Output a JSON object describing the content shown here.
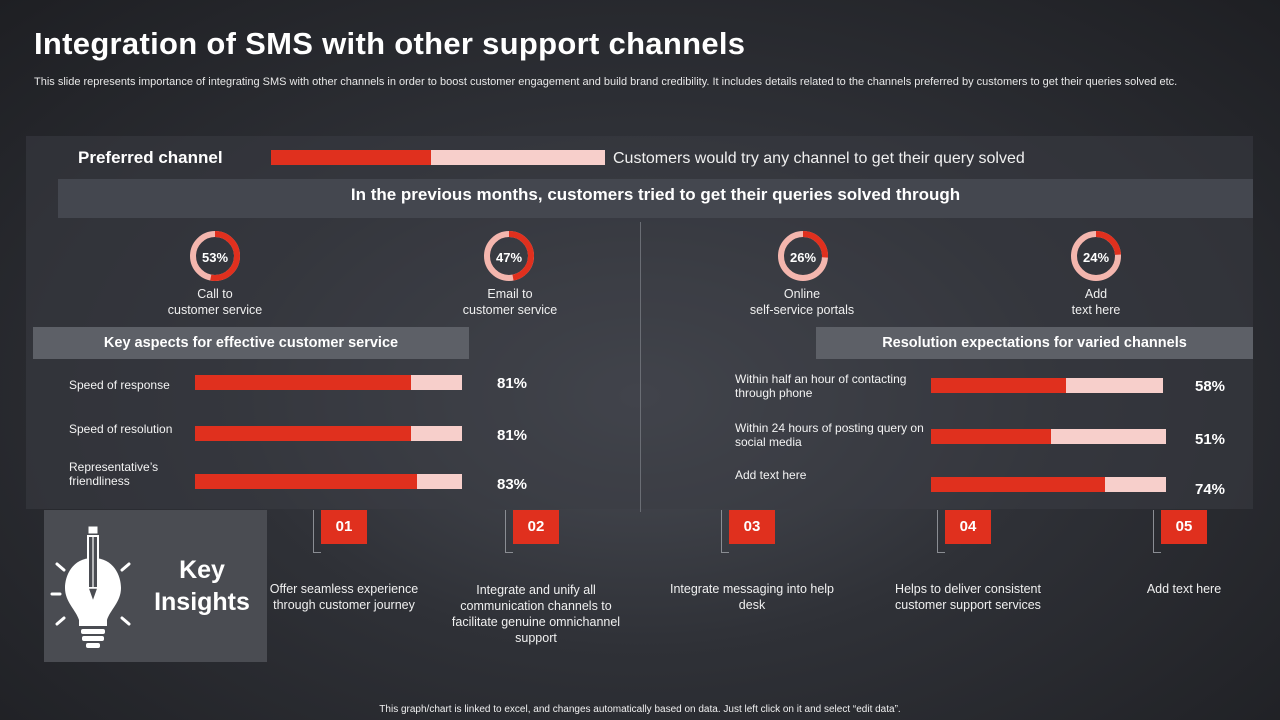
{
  "title": "Integration of SMS with other support channels",
  "subtitle": "This slide represents importance of integrating SMS with other channels in order to boost customer engagement and build brand credibility. It includes details related to the channels preferred by customers to get their queries solved etc.",
  "preferred": {
    "label": "Preferred channel",
    "level": 0.48,
    "text": "Customers would try any channel to get their query solved"
  },
  "heading": "In the previous months, customers tried to get their queries solved through",
  "channels": [
    {
      "pct": "53%",
      "value": 53,
      "line1": "Call to",
      "line2": "customer service"
    },
    {
      "pct": "47%",
      "value": 47,
      "line1": "Email to",
      "line2": "customer service"
    },
    {
      "pct": "26%",
      "value": 26,
      "line1": "Online",
      "line2": "self-service  portals"
    },
    {
      "pct": "24%",
      "value": 24,
      "line1": "Add",
      "line2": "text here"
    }
  ],
  "aspects": {
    "title": "Key aspects for effective customer service",
    "rows": [
      {
        "label": "Speed of response",
        "pct": "81%",
        "value": 81
      },
      {
        "label": "Speed of resolution",
        "pct": "81%",
        "value": 81
      },
      {
        "label": "Representative’s friendliness",
        "pct": "83%",
        "value": 83
      }
    ]
  },
  "resolution": {
    "title": "Resolution expectations for varied channels",
    "rows": [
      {
        "label": "Within half an hour of contacting through phone",
        "pct": "58%",
        "value": 58
      },
      {
        "label": "Within 24 hours of posting query on social media",
        "pct": "51%",
        "value": 51
      },
      {
        "label": "Add text here",
        "pct": "74%",
        "value": 74
      }
    ]
  },
  "insights": {
    "title_line1": "Key",
    "title_line2": "Insights",
    "items": [
      {
        "num": "01",
        "text": "Offer seamless experience through customer journey"
      },
      {
        "num": "02",
        "text": "Integrate and unify all communication channels to facilitate genuine omnichannel support"
      },
      {
        "num": "03",
        "text": "Integrate messaging into help desk"
      },
      {
        "num": "04",
        "text": "Helps to deliver consistent customer support services"
      },
      {
        "num": "05",
        "text": "Add text here"
      }
    ]
  },
  "footer": "This graph/chart is linked to excel, and changes automatically based on data. Just left click on it and select “edit data”.",
  "colors": {
    "accent": "#e0301e",
    "track": "#f7cfcb"
  }
}
